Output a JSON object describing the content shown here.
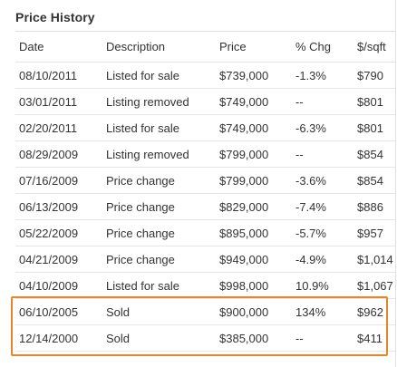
{
  "panel": {
    "title": "Price History"
  },
  "table": {
    "headers": {
      "date": "Date",
      "description": "Description",
      "price": "Price",
      "pct_chg": "% Chg",
      "per_sqft": "$/sqft"
    },
    "rows": [
      {
        "date": "08/10/2011",
        "description": "Listed for sale",
        "price": "$739,000",
        "pct_chg": "-1.3%",
        "chg_type": "neg",
        "per_sqft": "$790"
      },
      {
        "date": "03/01/2011",
        "description": "Listing removed",
        "price": "$749,000",
        "pct_chg": "--",
        "chg_type": "flat",
        "per_sqft": "$801"
      },
      {
        "date": "02/20/2011",
        "description": "Listed for sale",
        "price": "$749,000",
        "pct_chg": "-6.3%",
        "chg_type": "neg",
        "per_sqft": "$801"
      },
      {
        "date": "08/29/2009",
        "description": "Listing removed",
        "price": "$799,000",
        "pct_chg": "--",
        "chg_type": "flat",
        "per_sqft": "$854"
      },
      {
        "date": "07/16/2009",
        "description": "Price change",
        "price": "$799,000",
        "pct_chg": "-3.6%",
        "chg_type": "neg",
        "per_sqft": "$854"
      },
      {
        "date": "06/13/2009",
        "description": "Price change",
        "price": "$829,000",
        "pct_chg": "-7.4%",
        "chg_type": "neg",
        "per_sqft": "$886"
      },
      {
        "date": "05/22/2009",
        "description": "Price change",
        "price": "$895,000",
        "pct_chg": "-5.7%",
        "chg_type": "neg",
        "per_sqft": "$957"
      },
      {
        "date": "04/21/2009",
        "description": "Price change",
        "price": "$949,000",
        "pct_chg": "-4.9%",
        "chg_type": "neg",
        "per_sqft": "$1,014"
      },
      {
        "date": "04/10/2009",
        "description": "Listed for sale",
        "price": "$998,000",
        "pct_chg": "10.9%",
        "chg_type": "pos",
        "per_sqft": "$1,067"
      },
      {
        "date": "06/10/2005",
        "description": "Sold",
        "price": "$900,000",
        "pct_chg": "134%",
        "chg_type": "pos",
        "per_sqft": "$962"
      },
      {
        "date": "12/14/2000",
        "description": "Sold",
        "price": "$385,000",
        "pct_chg": "--",
        "chg_type": "flat",
        "per_sqft": "$411"
      }
    ]
  },
  "colors": {
    "negative_change": "#cc0000",
    "positive_change": "#1a9a1a",
    "highlight_border": "#e8842a"
  }
}
